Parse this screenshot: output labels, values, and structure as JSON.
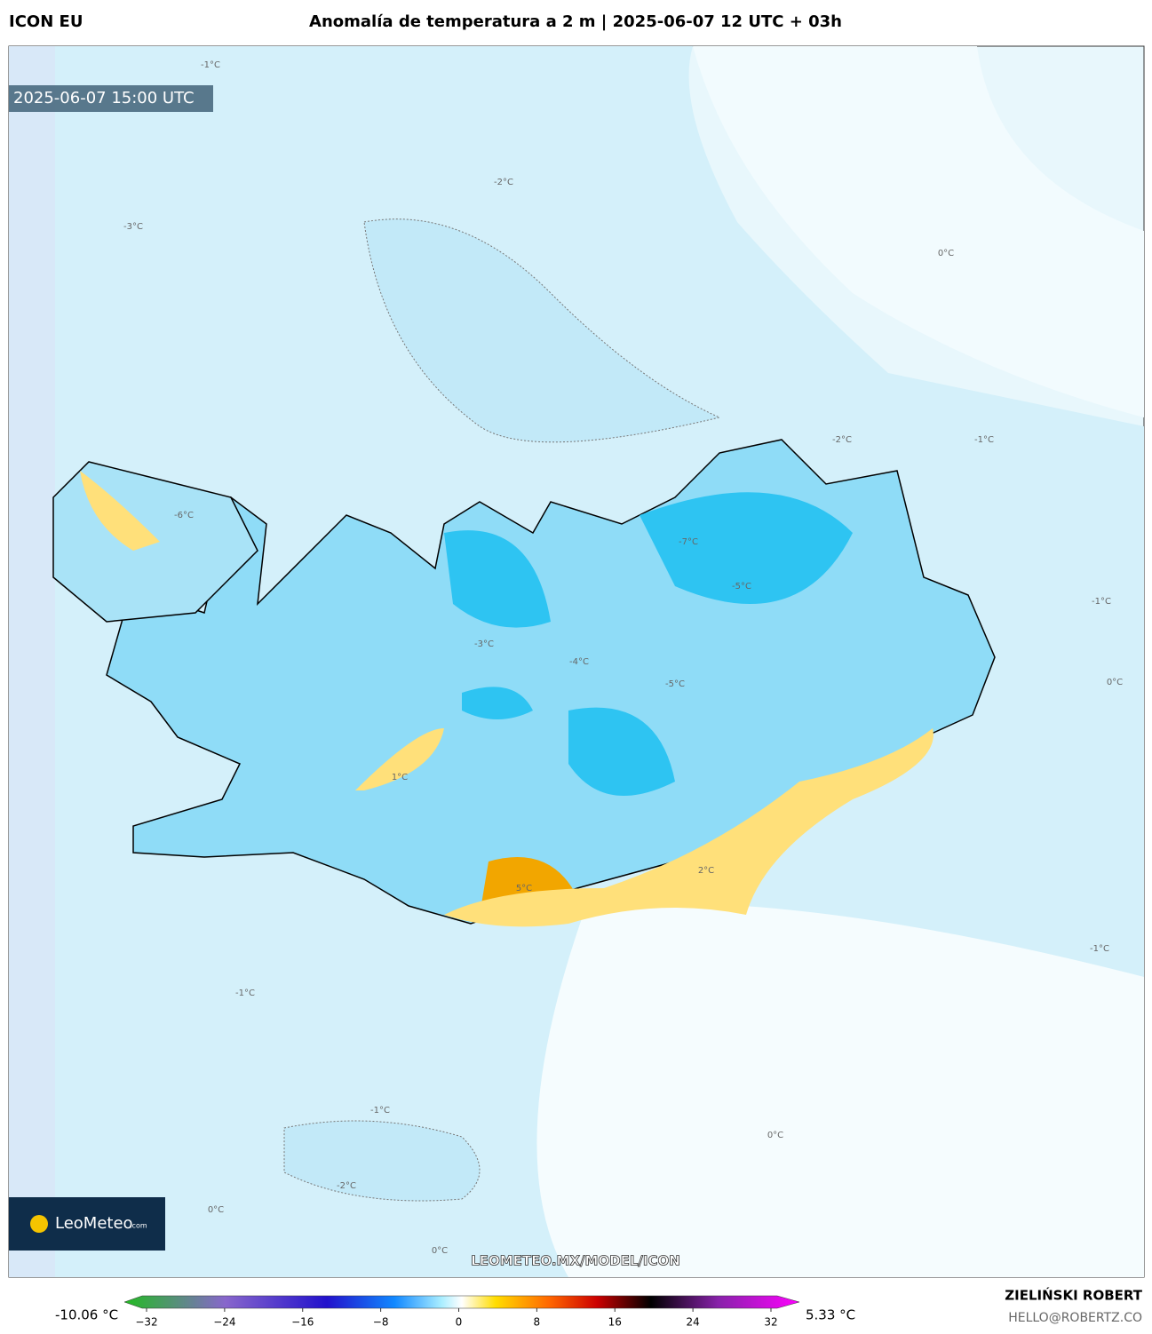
{
  "header": {
    "model": "ICON EU",
    "title": "Anomalía de temperatura a 2 m | 2025-06-07 12 UTC + 03h"
  },
  "map": {
    "timestamp": "2025-06-07 15:00 UTC",
    "logo": "LeoMeteo",
    "logo_suffix": ".com",
    "url": "LEOMETEO.MX/MODEL/ICON",
    "contour_labels": [
      "-1°C",
      "-2°C",
      "-3°C",
      "0°C",
      "-1°C",
      "-2°C",
      "-7°C",
      "-5°C",
      "-6°C",
      "-4°C",
      "-5°C",
      "-3°C",
      "2°C",
      "5°C",
      "1°C",
      "0°C",
      "-1°C",
      "-1°C",
      "0°C",
      "-1°C",
      "-2°C",
      "0°C",
      "0°C",
      "-1°C"
    ]
  },
  "colorbar": {
    "min_label": "-10.06 °C",
    "max_label": "5.33 °C",
    "ticks": [
      {
        "value": -32,
        "label": "−32"
      },
      {
        "value": -24,
        "label": "−24"
      },
      {
        "value": -16,
        "label": "−16"
      },
      {
        "value": -8,
        "label": "−8"
      },
      0,
      8,
      16,
      24,
      32
    ]
  },
  "footer": {
    "author": "ZIELIŃSKI ROBERT",
    "email": "HELLO@ROBERTZ.CO"
  }
}
